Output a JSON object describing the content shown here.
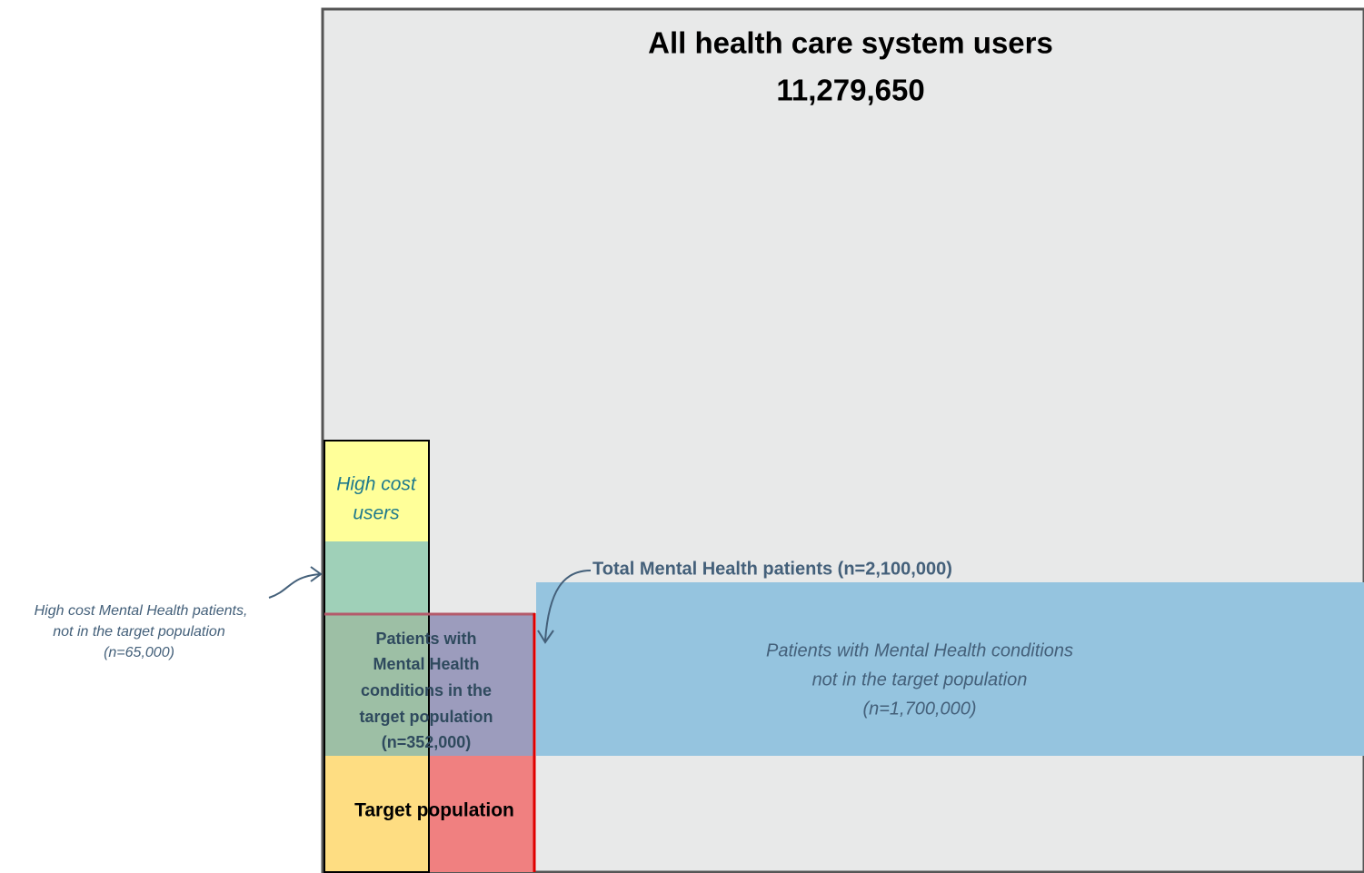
{
  "diagram": {
    "title": "All health care system users",
    "total": "11,279,650",
    "high_cost_users": [
      "High cost",
      "users"
    ],
    "high_cost_mh_annotation": [
      "High cost Mental Health patients,",
      "not in the target population",
      "(n=65,000)"
    ],
    "total_mh_label": "Total Mental Health patients (n=2,100,000)",
    "mh_not_target": [
      "Patients with Mental Health conditions",
      "not in the target population",
      "(n=1,700,000)"
    ],
    "mh_in_target": [
      "Patients with",
      "Mental Health",
      "conditions in the",
      "target population",
      "(n=352,000)"
    ],
    "target_population": "Target population"
  }
}
